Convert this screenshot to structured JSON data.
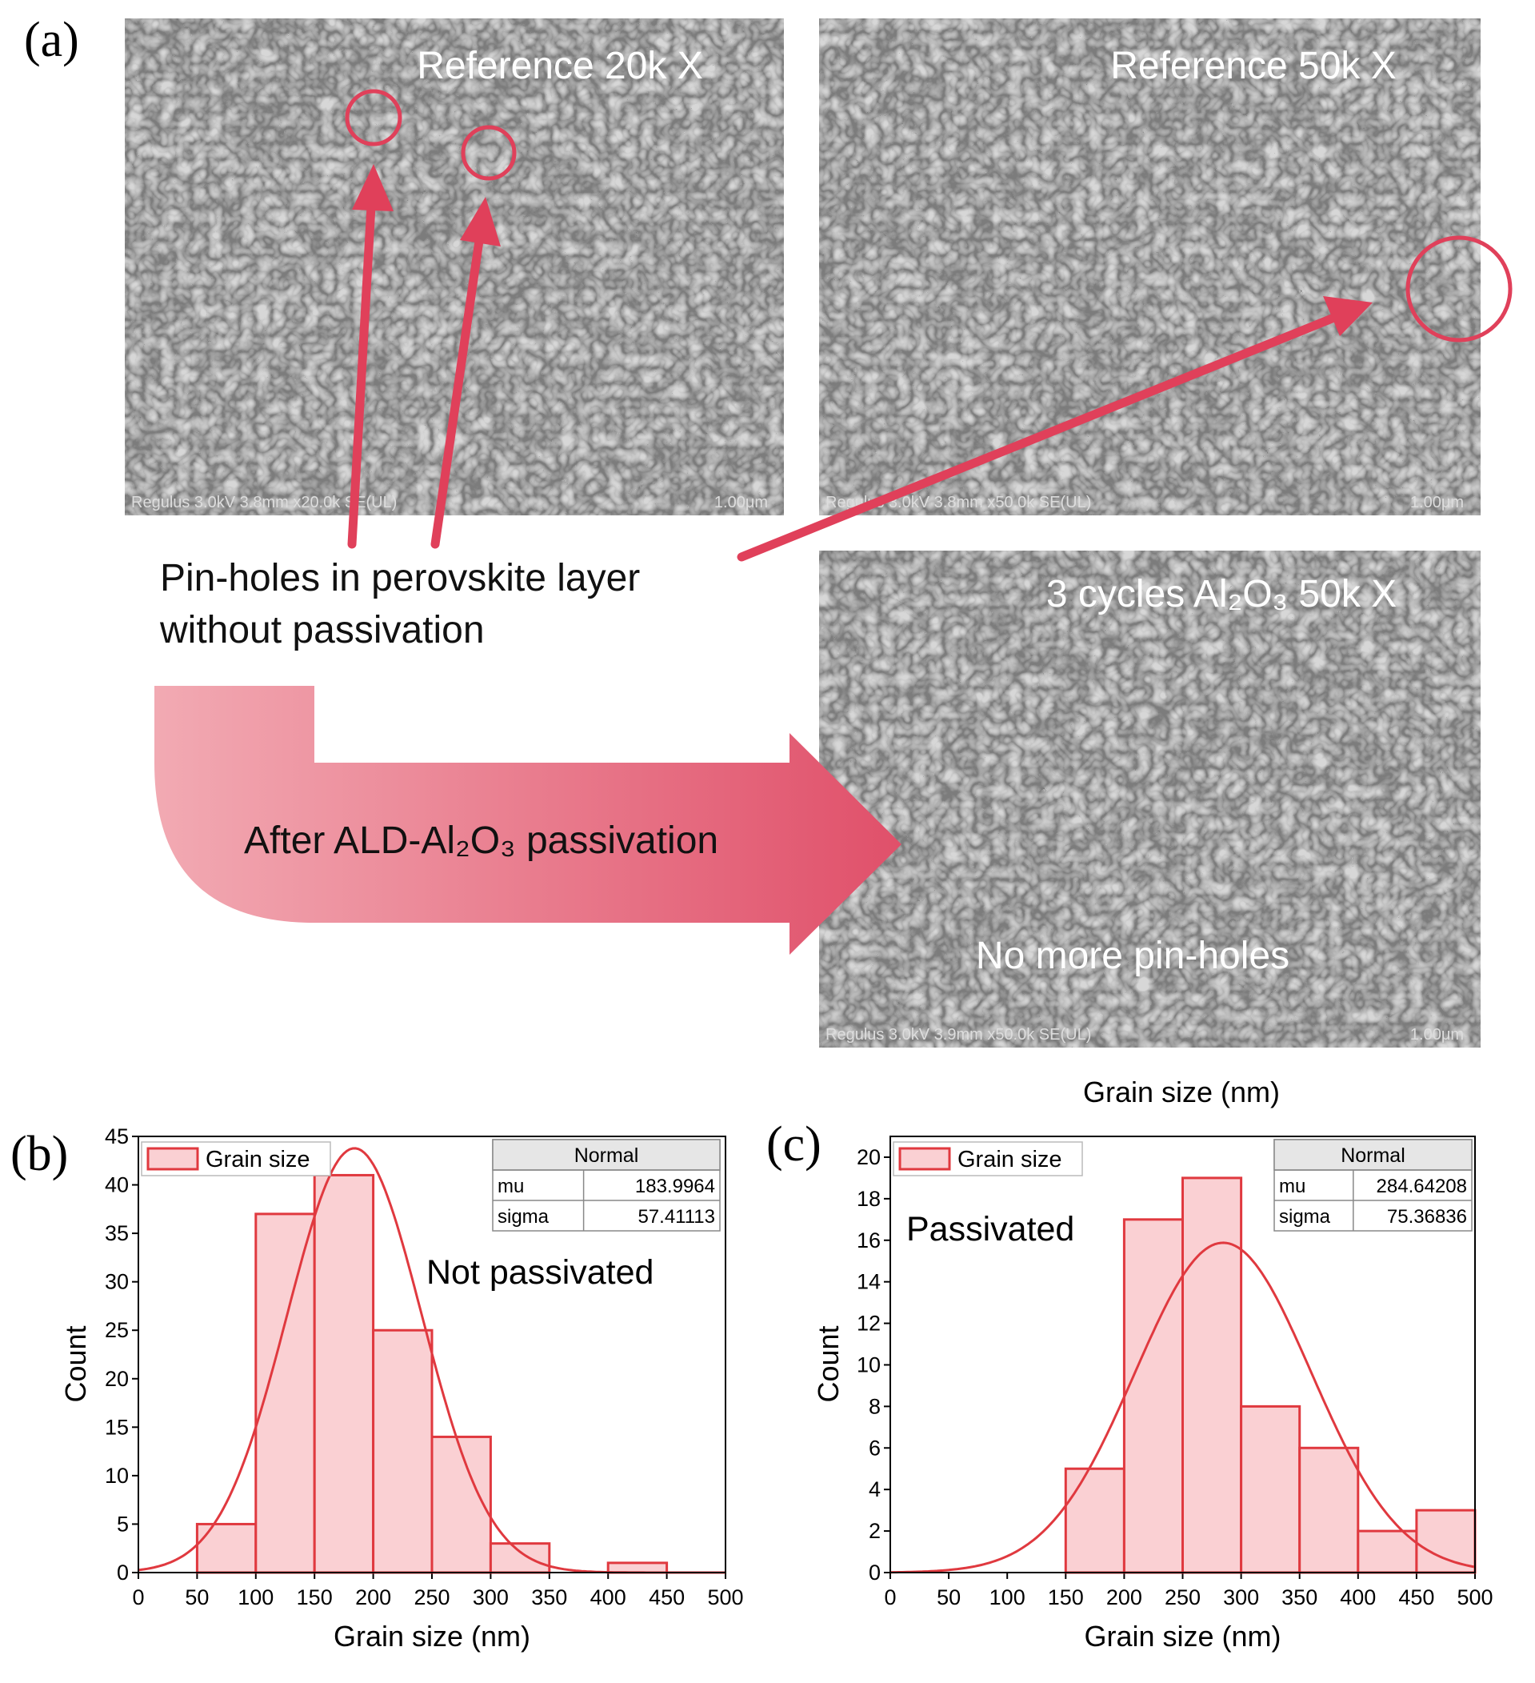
{
  "figure": {
    "panel_label": "(a)",
    "images": [
      {
        "label": "Reference 20k X",
        "footer": "Regulus 3.0kV 3.8mm x20.0k SE(UL)",
        "scale": "1.00μm"
      },
      {
        "label": "Reference 50k X",
        "footer": "Regulus 3.0kV 3.8mm x50.0k SE(UL)",
        "scale": "1.00μm"
      },
      {
        "label": "3 cycles Al₂O₃ 50k X",
        "footer": "Regulus 3.0kV 3.9mm x50.0k SE(UL)",
        "scale": "1.00μm",
        "note": "No more pin-holes"
      }
    ],
    "pinhole_text": [
      "Pin-holes in perovskite layer",
      "without passivation"
    ],
    "arrow_text": "After ALD-Al₂O₃ passivation"
  },
  "chart_data": [
    {
      "type": "histogram",
      "panel_label": "(b)",
      "x_label": "Grain size (nm)",
      "y_label": "Count",
      "bins": [
        50,
        100,
        150,
        200,
        250,
        300,
        350,
        400,
        450
      ],
      "series": [
        {
          "name": "Grain size",
          "color": "#e0393f",
          "values": [
            5,
            37,
            41,
            25,
            14,
            3,
            0,
            1
          ]
        }
      ],
      "xlim": [
        0,
        500
      ],
      "xticks": [
        0,
        50,
        100,
        150,
        200,
        250,
        300,
        350,
        400,
        450,
        500
      ],
      "ylim": [
        0,
        45
      ],
      "yticks": [
        0,
        5,
        10,
        15,
        20,
        25,
        30,
        35,
        40,
        45
      ],
      "fit": {
        "title": "Normal",
        "rows": [
          {
            "label": "mu",
            "value": 183.9964
          },
          {
            "label": "sigma",
            "value": 57.41113
          }
        ]
      },
      "annotation": "Not passivated"
    },
    {
      "type": "histogram",
      "panel_label": "(c)",
      "top_label": "Grain size (nm)",
      "x_label": "Grain size (nm)",
      "y_label": "Count",
      "bins": [
        150,
        200,
        250,
        300,
        350,
        400,
        450,
        500
      ],
      "series": [
        {
          "name": "Grain size",
          "color": "#e0393f",
          "values": [
            5,
            17,
            19,
            8,
            6,
            2,
            3
          ]
        }
      ],
      "xlim": [
        0,
        500
      ],
      "xticks": [
        0,
        50,
        100,
        150,
        200,
        250,
        300,
        350,
        400,
        450,
        500
      ],
      "ylim": [
        0,
        21
      ],
      "yticks": [
        0,
        2,
        4,
        6,
        8,
        10,
        12,
        14,
        16,
        18,
        20
      ],
      "fit": {
        "title": "Normal",
        "rows": [
          {
            "label": "mu",
            "value": 284.64208
          },
          {
            "label": "sigma",
            "value": 75.36836
          }
        ]
      },
      "annotation": "Passivated"
    }
  ]
}
